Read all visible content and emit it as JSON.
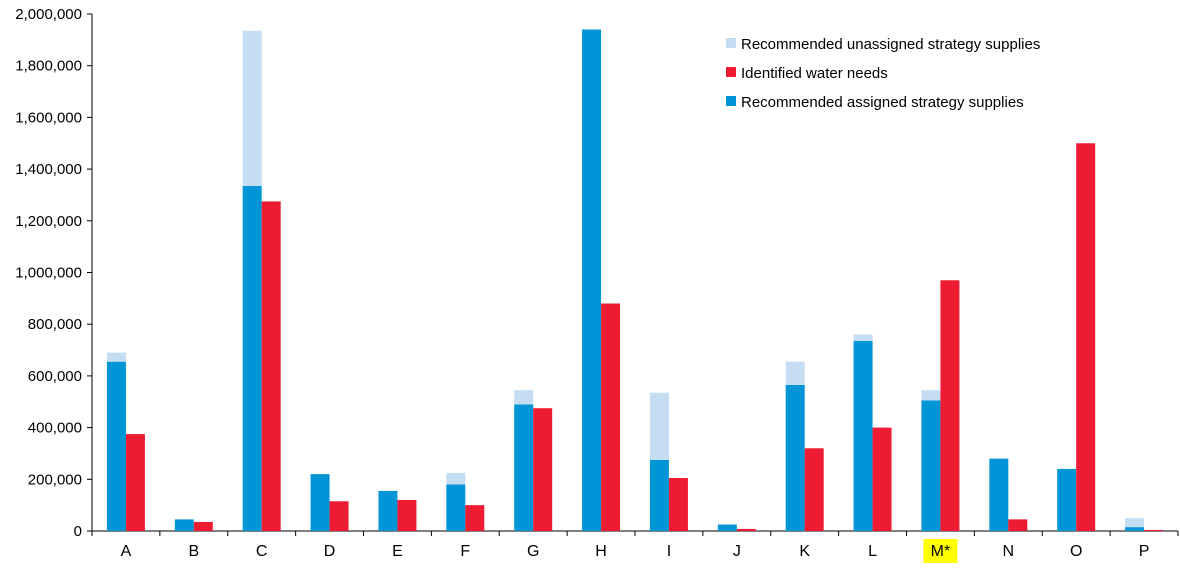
{
  "chart_data": {
    "type": "bar",
    "categories": [
      "A",
      "B",
      "C",
      "D",
      "E",
      "F",
      "G",
      "H",
      "I",
      "J",
      "K",
      "L",
      "M*",
      "N",
      "O",
      "P"
    ],
    "highlight_category": "M*",
    "ylim": [
      0,
      2000000
    ],
    "yticks": [
      "0",
      "200,000",
      "400,000",
      "600,000",
      "800,000",
      "1,000,000",
      "1,200,000",
      "1,400,000",
      "1,600,000",
      "1,800,000",
      "2,000,000"
    ],
    "ytick_values": [
      0,
      200000,
      400000,
      600000,
      800000,
      1000000,
      1200000,
      1400000,
      1600000,
      1800000,
      2000000
    ],
    "grid": false,
    "legend_position": "top-right",
    "series": [
      {
        "name": "Recommended assigned strategy supplies",
        "color": "#0096d6",
        "stack": "supplies",
        "values": [
          655000,
          45000,
          1335000,
          220000,
          155000,
          180000,
          490000,
          1940000,
          275000,
          25000,
          565000,
          735000,
          505000,
          280000,
          240000,
          15000
        ]
      },
      {
        "name": "Recommended unassigned strategy supplies",
        "color": "#c5ddf3",
        "stack": "supplies",
        "values": [
          35000,
          0,
          600000,
          0,
          0,
          45000,
          55000,
          0,
          260000,
          0,
          90000,
          25000,
          40000,
          0,
          0,
          35000
        ]
      },
      {
        "name": "Identified water needs",
        "color": "#ed1c33",
        "stack": "needs",
        "values": [
          375000,
          35000,
          1275000,
          115000,
          120000,
          100000,
          475000,
          880000,
          205000,
          8000,
          320000,
          400000,
          970000,
          45000,
          1500000,
          4000
        ]
      }
    ],
    "legend_order": [
      "Recommended unassigned strategy supplies",
      "Identified water needs",
      "Recommended assigned strategy supplies"
    ]
  }
}
